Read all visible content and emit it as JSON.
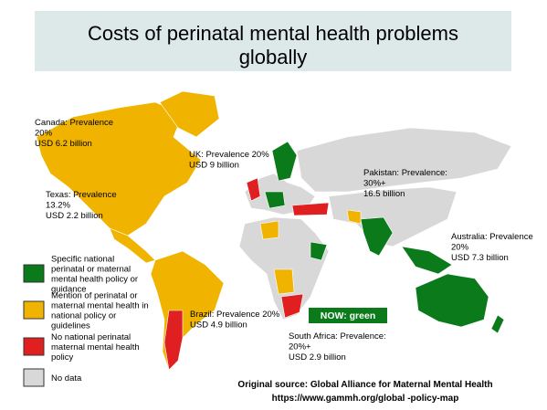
{
  "title": [
    "Costs of perinatal mental health problems",
    "globally"
  ],
  "annotations": [
    {
      "lines": [
        "Canada: Prevalence",
        "20%",
        "USD 6.2 billion"
      ]
    },
    {
      "lines": [
        "UK: Prevalence 20%",
        "USD 9 billion"
      ]
    },
    {
      "lines": [
        "Pakistan: Prevalence:",
        "30%+",
        "16.5 billion"
      ]
    },
    {
      "lines": [
        "Texas: Prevalence",
        "13.2%",
        "USD 2.2 billion"
      ]
    },
    {
      "lines": [
        "Australia: Prevalence",
        "20%",
        "USD 7.3 billion"
      ]
    },
    {
      "lines": [
        "Brazil: Prevalence 20%",
        "USD 4.9 billion"
      ]
    },
    {
      "lines": [
        "South Africa: Prevalence:",
        "20%+",
        "USD 2.9 billion"
      ]
    }
  ],
  "legend": [
    {
      "lines": [
        "Specific national",
        "perinatal or maternal",
        "mental health policy or",
        "guidance"
      ],
      "color": "#0a7a1a"
    },
    {
      "lines": [
        "Mention of perinatal or",
        "maternal mental health in",
        "national policy or",
        "guidelines"
      ],
      "color": "#f0b400"
    },
    {
      "lines": [
        "No national perinatal",
        "maternal mental health",
        "policy"
      ],
      "color": "#e02020"
    },
    {
      "lines": [
        "No data"
      ],
      "color": "#d8d8d8"
    }
  ],
  "badge": "NOW: green",
  "source": [
    "Original source: Global Alliance for Maternal Mental Health",
    "https://www.gammh.org/global   -policy-map"
  ]
}
